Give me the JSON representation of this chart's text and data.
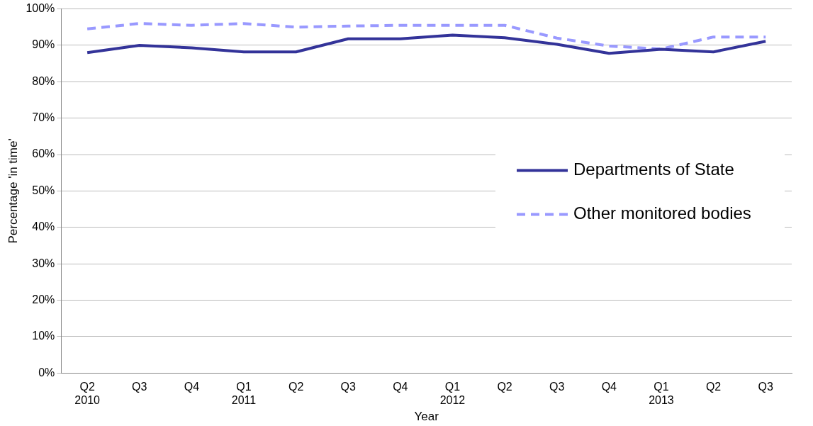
{
  "chart_data": {
    "type": "line",
    "xlabel": "Year",
    "ylabel": "Percentage 'in time'",
    "categories": [
      "Q2\n2010",
      "Q3",
      "Q4",
      "Q1\n2011",
      "Q2",
      "Q3",
      "Q4",
      "Q1\n2012",
      "Q2",
      "Q3",
      "Q4",
      "Q1\n2013",
      "Q2",
      "Q3"
    ],
    "series": [
      {
        "name": "Departments of State",
        "color": "#333399",
        "line_style": "solid",
        "values": [
          88,
          90,
          89.3,
          88.2,
          88.2,
          91.8,
          91.8,
          92.8,
          92.1,
          90.3,
          87.8,
          88.9,
          88.2,
          91.1
        ]
      },
      {
        "name": "Other monitored bodies",
        "color": "#9999ff",
        "line_style": "dashed",
        "values": [
          94.5,
          96,
          95.5,
          96,
          95,
          95.3,
          95.5,
          95.5,
          95.5,
          92,
          89.8,
          89,
          92.3,
          92.3
        ]
      }
    ],
    "ylim": [
      0,
      100
    ],
    "yticks": [
      {
        "value": 0,
        "label": "0%"
      },
      {
        "value": 10,
        "label": "10%"
      },
      {
        "value": 20,
        "label": "20%"
      },
      {
        "value": 30,
        "label": "30%"
      },
      {
        "value": 40,
        "label": "40%"
      },
      {
        "value": 50,
        "label": "50%"
      },
      {
        "value": 60,
        "label": "60%"
      },
      {
        "value": 70,
        "label": "70%"
      },
      {
        "value": 80,
        "label": "80%"
      },
      {
        "value": 90,
        "label": "90%"
      },
      {
        "value": 100,
        "label": "100%"
      }
    ],
    "grid": "y",
    "legend": "right",
    "marker": "none"
  }
}
